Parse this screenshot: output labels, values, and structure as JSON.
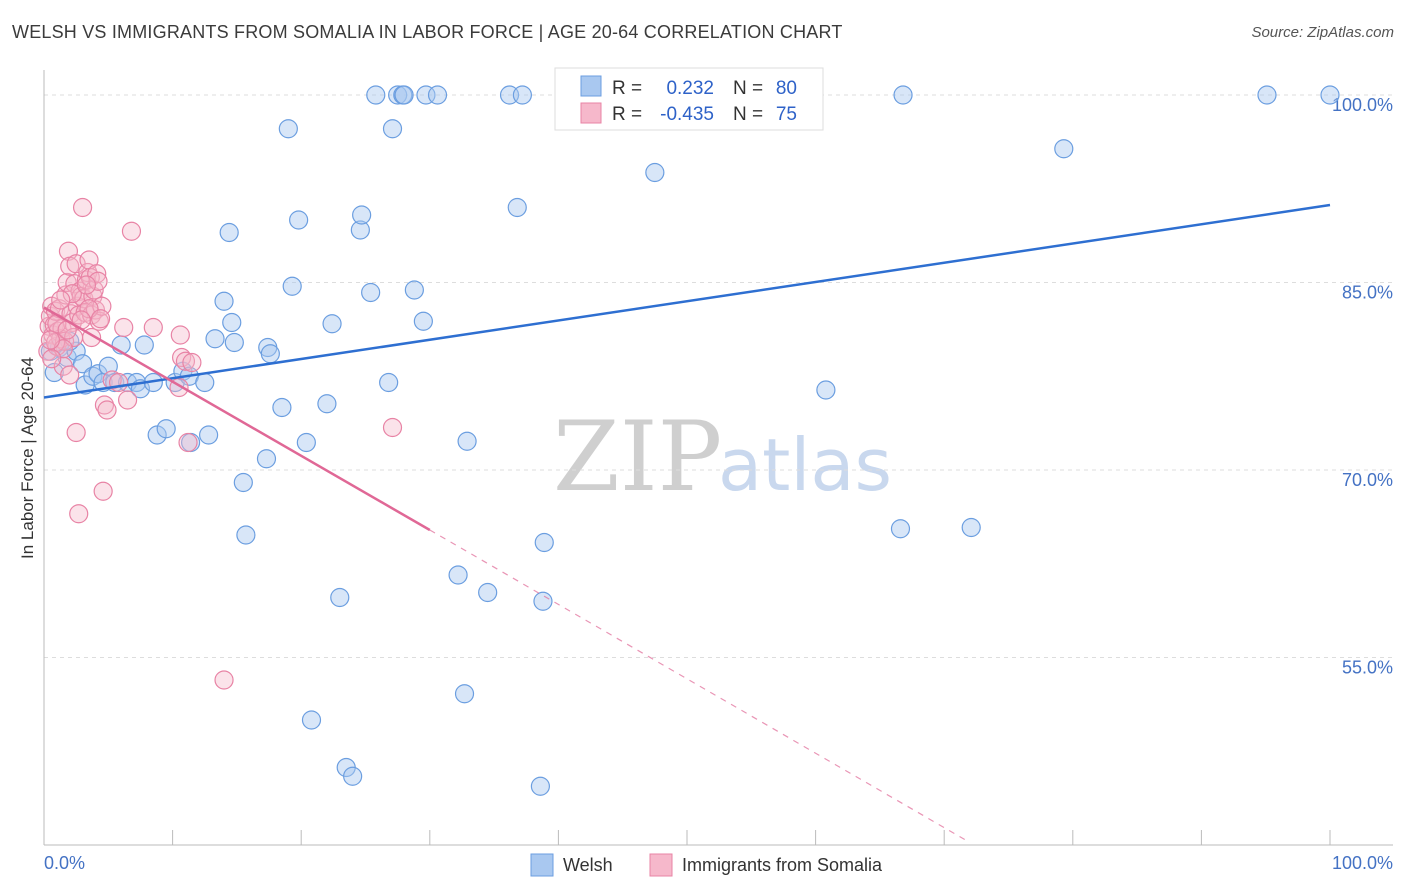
{
  "header": {
    "title": "WELSH VS IMMIGRANTS FROM SOMALIA IN LABOR FORCE | AGE 20-64 CORRELATION CHART",
    "source": "Source: ZipAtlas.com"
  },
  "colors": {
    "welsh_fill": "#a9c8f0",
    "welsh_stroke": "#6b9ee0",
    "welsh_line": "#2e6fd1",
    "somalia_fill": "#f6b8cb",
    "somalia_stroke": "#e883a5",
    "somalia_line": "#e06896",
    "axis_label": "#4472c4",
    "grid": "#dddddd"
  },
  "chart_data": {
    "type": "scatter",
    "title": "WELSH VS IMMIGRANTS FROM SOMALIA IN LABOR FORCE | AGE 20-64 CORRELATION CHART",
    "xlabel": "",
    "ylabel": "In Labor Force | Age 20-64",
    "xlim": [
      0,
      100
    ],
    "ylim": [
      40,
      102
    ],
    "x_tick_labels": [
      "0.0%",
      "100.0%"
    ],
    "y_ticks": [
      55,
      70,
      85,
      100
    ],
    "y_tick_labels": [
      "55.0%",
      "70.0%",
      "85.0%",
      "100.0%"
    ],
    "legend": {
      "position": "top-center",
      "entries": [
        {
          "series": "Welsh",
          "r_label": "R =",
          "r_value": "0.232",
          "n_label": "N =",
          "n_value": "80"
        },
        {
          "series": "Immigrants from Somalia",
          "r_label": "R =",
          "r_value": "-0.435",
          "n_label": "N =",
          "n_value": "75"
        }
      ]
    },
    "bottom_legend": [
      "Welsh",
      "Immigrants from Somalia"
    ],
    "watermark": {
      "zip": "ZIP",
      "atlas": "atlas"
    },
    "series": [
      {
        "name": "Welsh",
        "trend": {
          "x0": 0,
          "y0": 75.8,
          "x1": 100,
          "y1": 91.2
        },
        "points": [
          [
            0.5,
            79.5
          ],
          [
            1.2,
            79.8
          ],
          [
            1.8,
            79.0
          ],
          [
            2.5,
            79.5
          ],
          [
            3.0,
            78.5
          ],
          [
            3.2,
            76.8
          ],
          [
            3.8,
            77.5
          ],
          [
            4.2,
            77.7
          ],
          [
            4.6,
            77.0
          ],
          [
            5.0,
            78.3
          ],
          [
            5.5,
            77.0
          ],
          [
            6.0,
            80.0
          ],
          [
            6.5,
            77.0
          ],
          [
            7.2,
            77.0
          ],
          [
            7.5,
            76.5
          ],
          [
            7.8,
            80.0
          ],
          [
            8.5,
            77.0
          ],
          [
            8.8,
            72.8
          ],
          [
            9.5,
            73.3
          ],
          [
            10.2,
            77.0
          ],
          [
            10.8,
            77.9
          ],
          [
            11.3,
            77.5
          ],
          [
            11.4,
            72.2
          ],
          [
            12.5,
            77.0
          ],
          [
            12.8,
            72.8
          ],
          [
            13.3,
            80.5
          ],
          [
            14.0,
            83.5
          ],
          [
            14.4,
            89.0
          ],
          [
            14.6,
            81.8
          ],
          [
            14.8,
            80.2
          ],
          [
            15.5,
            69.0
          ],
          [
            15.7,
            64.8
          ],
          [
            17.3,
            70.9
          ],
          [
            17.4,
            79.8
          ],
          [
            17.6,
            79.3
          ],
          [
            18.5,
            75.0
          ],
          [
            19.0,
            97.3
          ],
          [
            19.3,
            84.7
          ],
          [
            19.8,
            90.0
          ],
          [
            20.4,
            72.2
          ],
          [
            20.8,
            50.0
          ],
          [
            22.0,
            75.3
          ],
          [
            22.4,
            81.7
          ],
          [
            23.0,
            59.8
          ],
          [
            23.5,
            46.2
          ],
          [
            24.0,
            45.5
          ],
          [
            24.6,
            89.2
          ],
          [
            24.7,
            90.4
          ],
          [
            25.4,
            84.2
          ],
          [
            25.8,
            100.0
          ],
          [
            26.8,
            77.0
          ],
          [
            27.1,
            97.3
          ],
          [
            27.5,
            100.0
          ],
          [
            27.9,
            100.0
          ],
          [
            28.0,
            100.0
          ],
          [
            28.8,
            84.4
          ],
          [
            29.5,
            81.9
          ],
          [
            29.7,
            100.0
          ],
          [
            30.6,
            100.0
          ],
          [
            32.2,
            61.6
          ],
          [
            32.7,
            52.1
          ],
          [
            32.9,
            72.3
          ],
          [
            34.5,
            60.2
          ],
          [
            36.2,
            100.0
          ],
          [
            37.2,
            100.0
          ],
          [
            36.8,
            91.0
          ],
          [
            38.6,
            44.7
          ],
          [
            38.8,
            59.5
          ],
          [
            38.9,
            64.2
          ],
          [
            41.0,
            100.0
          ],
          [
            47.5,
            93.8
          ],
          [
            60.8,
            76.4
          ],
          [
            66.6,
            65.3
          ],
          [
            66.8,
            100.0
          ],
          [
            72.1,
            65.4
          ],
          [
            79.3,
            95.7
          ],
          [
            95.1,
            100.0
          ],
          [
            100.0,
            100.0
          ],
          [
            0.8,
            77.8
          ],
          [
            2.0,
            80.3
          ]
        ]
      },
      {
        "name": "Immigrants from Somalia",
        "trend": {
          "x0": 0,
          "y0": 83.0,
          "x1": 30,
          "y1": 65.2,
          "dash_x1": 72,
          "dash_y1": 40.2
        },
        "points": [
          [
            0.3,
            79.5
          ],
          [
            0.4,
            81.5
          ],
          [
            0.5,
            82.3
          ],
          [
            0.6,
            83.1
          ],
          [
            0.7,
            80.8
          ],
          [
            0.8,
            81.6
          ],
          [
            0.9,
            82.7
          ],
          [
            1.0,
            79.9
          ],
          [
            1.1,
            81.1
          ],
          [
            1.2,
            82.9
          ],
          [
            1.3,
            80.5
          ],
          [
            1.4,
            81.3
          ],
          [
            1.5,
            78.3
          ],
          [
            1.6,
            80.3
          ],
          [
            1.7,
            84.0
          ],
          [
            1.8,
            85.0
          ],
          [
            1.9,
            87.5
          ],
          [
            2.0,
            86.3
          ],
          [
            2.1,
            82.5
          ],
          [
            2.2,
            81.8
          ],
          [
            2.3,
            80.6
          ],
          [
            2.4,
            84.9
          ],
          [
            2.5,
            86.5
          ],
          [
            2.6,
            83.1
          ],
          [
            2.7,
            82.4
          ],
          [
            2.8,
            84.3
          ],
          [
            2.9,
            83.9
          ],
          [
            3.0,
            91.0
          ],
          [
            3.1,
            83.7
          ],
          [
            3.2,
            82.6
          ],
          [
            3.3,
            85.2
          ],
          [
            3.4,
            85.8
          ],
          [
            3.5,
            86.8
          ],
          [
            3.6,
            85.4
          ],
          [
            3.7,
            82.4
          ],
          [
            3.8,
            83.9
          ],
          [
            3.9,
            84.4
          ],
          [
            4.0,
            82.8
          ],
          [
            4.1,
            85.7
          ],
          [
            4.2,
            85.1
          ],
          [
            4.3,
            81.9
          ],
          [
            4.5,
            83.1
          ],
          [
            4.7,
            75.2
          ],
          [
            4.9,
            74.8
          ],
          [
            5.3,
            77.2
          ],
          [
            5.8,
            77.0
          ],
          [
            6.2,
            81.4
          ],
          [
            6.5,
            75.6
          ],
          [
            6.8,
            89.1
          ],
          [
            8.5,
            81.4
          ],
          [
            10.5,
            76.6
          ],
          [
            10.6,
            80.8
          ],
          [
            10.7,
            79.0
          ],
          [
            11.0,
            78.7
          ],
          [
            11.2,
            72.2
          ],
          [
            11.5,
            78.6
          ],
          [
            14.0,
            53.2
          ],
          [
            27.1,
            73.4
          ],
          [
            2.5,
            73.0
          ],
          [
            2.7,
            66.5
          ],
          [
            4.6,
            68.3
          ],
          [
            0.9,
            80.2
          ],
          [
            1.5,
            79.7
          ],
          [
            3.5,
            82.9
          ],
          [
            1.0,
            81.7
          ],
          [
            2.2,
            84.1
          ],
          [
            0.6,
            78.9
          ],
          [
            4.4,
            82.1
          ],
          [
            3.3,
            84.8
          ],
          [
            1.3,
            83.6
          ],
          [
            2.0,
            77.6
          ],
          [
            0.5,
            80.4
          ],
          [
            3.7,
            80.6
          ],
          [
            1.8,
            81.2
          ],
          [
            2.9,
            82.0
          ]
        ]
      }
    ]
  }
}
